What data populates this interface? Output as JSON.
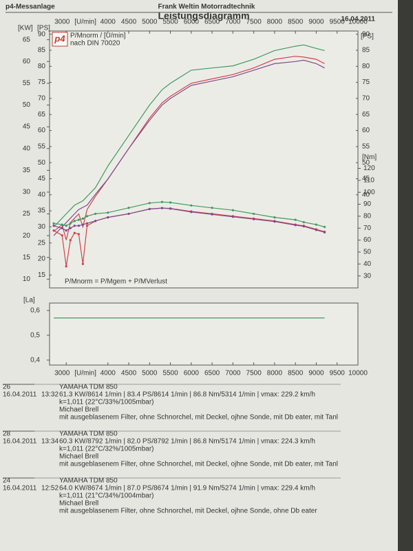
{
  "header": {
    "left": "p4-Messanlage",
    "company": "Frank Weltin Motorradtechnik",
    "title": "Leistungsdiagramm",
    "date": "16.04.2011"
  },
  "chart_data": [
    {
      "type": "line",
      "logo": "p4",
      "legend_title": "P/Mnorm / [U/min]",
      "norm": "nach DIN 70020",
      "formula": "P/Mnorm = P/Mgem + P/MVerlust",
      "xlabel": "[U/min]",
      "ylabel": "[KW]",
      "ps_label": "[PS]",
      "y2label": "[Nm]",
      "x": [
        2700,
        2900,
        3000,
        3100,
        3200,
        3300,
        3400,
        3500,
        3700,
        4000,
        4500,
        5000,
        5300,
        5500,
        6000,
        6500,
        7000,
        7500,
        8000,
        8500,
        8700,
        9000,
        9200
      ],
      "xlim": [
        2600,
        10000
      ],
      "xticks": [
        3000,
        4000,
        4500,
        5000,
        5500,
        6000,
        6500,
        7000,
        7500,
        8000,
        8500,
        9000,
        9500,
        10000
      ],
      "ylim": [
        8,
        67
      ],
      "yticks": [
        10,
        15,
        20,
        25,
        30,
        35,
        40,
        45,
        50,
        55,
        60,
        65
      ],
      "ps_lim": [
        11,
        91
      ],
      "ps_ticks": [
        15,
        20,
        25,
        30,
        35,
        40,
        45,
        50,
        55,
        60,
        65,
        70,
        75,
        80,
        85,
        90
      ],
      "ps_right_ticks": [
        40,
        45,
        50,
        55,
        60,
        65,
        70,
        75,
        80,
        85,
        90
      ],
      "y2lim": [
        20,
        235
      ],
      "y2ticks": [
        30,
        40,
        50,
        60,
        70,
        80,
        90,
        100,
        110,
        120
      ],
      "series": [
        {
          "color": "#3f9a62",
          "values": [
            22,
            24,
            25,
            26,
            27,
            27.5,
            28,
            29,
            31,
            36,
            43,
            50,
            53.5,
            55,
            58,
            58.5,
            59,
            60.5,
            62.5,
            63.5,
            63.8,
            63,
            62.5
          ]
        },
        {
          "color": "#d0414c",
          "values": [
            21,
            22.5,
            19,
            23,
            24,
            25,
            22,
            26,
            29,
            33,
            40,
            47,
            50.5,
            52,
            55,
            56,
            57,
            58.5,
            60.5,
            61.2,
            61,
            60.5,
            59.5
          ]
        },
        {
          "color": "#7d4a8c",
          "values": [
            20,
            22,
            23,
            24,
            25,
            26,
            26.5,
            27,
            29.5,
            33,
            40,
            46.5,
            50,
            51.5,
            54.5,
            55.5,
            56.5,
            58,
            59.5,
            60,
            60.3,
            59.5,
            58.5
          ]
        },
        {
          "color": "#3f9a62",
          "axis": "y2",
          "marker": true,
          "values": [
            74,
            73,
            72,
            74,
            76,
            77,
            78,
            80,
            82,
            83,
            87,
            91,
            91.9,
            91.5,
            89,
            87,
            85,
            82,
            79,
            77,
            75,
            73,
            71
          ]
        },
        {
          "color": "#d0414c",
          "axis": "y2",
          "marker": true,
          "values": [
            68,
            64,
            38,
            60,
            66,
            65,
            40,
            72,
            76,
            79,
            82,
            86,
            86.8,
            86.5,
            84,
            82,
            80,
            78,
            76,
            73,
            72,
            69,
            67
          ]
        },
        {
          "color": "#7d4a8c",
          "axis": "y2",
          "marker": true,
          "values": [
            72,
            70,
            68,
            70,
            72,
            72,
            73,
            74,
            76,
            79,
            82,
            86,
            86.8,
            86.3,
            83.5,
            81.5,
            79.5,
            77.5,
            75.5,
            72.5,
            71.5,
            68.5,
            66.5
          ]
        }
      ]
    },
    {
      "type": "line",
      "ylabel": "[La]",
      "xlabel": "[U/min]",
      "x": [
        2700,
        9200
      ],
      "xlim": [
        2600,
        10000
      ],
      "xticks": [
        3000,
        4000,
        4500,
        5000,
        5500,
        6000,
        6500,
        7000,
        7500,
        8000,
        8500,
        9000,
        9500,
        10000
      ],
      "ylim": [
        0.38,
        0.63
      ],
      "yticks": [
        {
          "value": 0.4,
          "label": "0,4"
        },
        {
          "value": 0.5,
          "label": "0,5"
        },
        {
          "value": 0.6,
          "label": "0,6"
        }
      ],
      "series": [
        {
          "color": "#3f9a62",
          "values": [
            0.57,
            0.57
          ]
        }
      ]
    }
  ],
  "runs": [
    {
      "number": "26",
      "date": "16.04.2011",
      "time": "13:32",
      "model": "YAMAHA TDM 850",
      "results": "61.3 KW/8614 1/min  |  83.4 PS/8614 1/min  |  86.8 Nm/5314 1/min  |  vmax: 229.2 km/h",
      "conditions": "k=1,011 (22°C/33%/1005mbar)",
      "rider": "Michael Brell",
      "notes": "mit ausgeblasenem Filter, ohne Schnorchel, mit Deckel, ojhne Sonde, mit Db eater, mit Tanl"
    },
    {
      "number": "28",
      "date": "16.04.2011",
      "time": "13:34",
      "model": "YAMAHA TDM 850",
      "results": "60.3 KW/8792 1/min  |  82.0 PS/8792 1/min  |  86.8 Nm/5174 1/min  |  vmax: 224.3 km/h",
      "conditions": "k=1,011 (22°C/32%/1005mbar)",
      "rider": "Michael Brell",
      "notes": "mit ausgeblasenem Filter, ohne Schnorchel, mit Deckel, ojhne Sonde, mit Db eater, mit Tanl"
    },
    {
      "number": "24",
      "date": "16.04.2011",
      "time": "12:52",
      "model": "YAMAHA TDM 850",
      "results": "64.0 KW/8674 1/min  |  87.0 PS/8674 1/min  |  91.9 Nm/5274 1/min  |  vmax: 229.4 km/h",
      "conditions": "k=1,011 (21°C/34%/1004mbar)",
      "rider": "Michael Brell",
      "notes": "mit ausgeblasenem Filter, ohne Schnorchel, mit Deckel, ojhne Sonde, ohne Db eater"
    }
  ]
}
